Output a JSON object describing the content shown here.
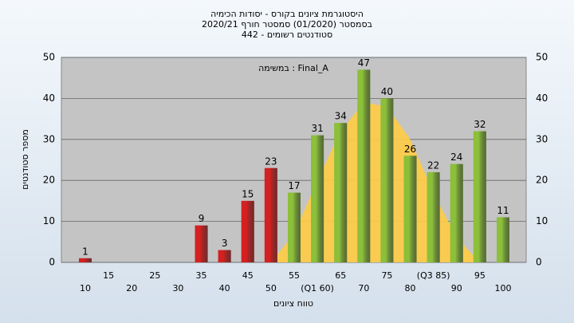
{
  "chart_data": {
    "type": "bar",
    "title": [
      "היסטוגרמת ציונים בקורס - יסודות הכימיה",
      "בסמסטר  (01/2020)  סמסטר חורף  2020/21",
      "סטודנטים רשומים - 442"
    ],
    "annotation": "במשימה : Final_A",
    "x_label": "טווח ציונים",
    "y_label": "מספר סטודנטים",
    "categories": [
      "10",
      "15",
      "20",
      "25",
      "30",
      "35",
      "40",
      "45",
      "50",
      "55",
      "(Q1 60)",
      "65",
      "70",
      "75",
      "80",
      "(Q3 85)",
      "90",
      "95",
      "100"
    ],
    "values": [
      1,
      0,
      0,
      0,
      0,
      9,
      3,
      15,
      23,
      17,
      31,
      34,
      47,
      40,
      26,
      22,
      24,
      32,
      11
    ],
    "colors": [
      "#d42020",
      "#d42020",
      "#d42020",
      "#d42020",
      "#d42020",
      "#d42020",
      "#d42020",
      "#d42020",
      "#d42020",
      "#8cbf3a",
      "#8cbf3a",
      "#8cbf3a",
      "#8cbf3a",
      "#8cbf3a",
      "#8cbf3a",
      "#8cbf3a",
      "#8cbf3a",
      "#8cbf3a",
      "#8cbf3a"
    ],
    "curve": {
      "color": "#ffcc44",
      "values": [
        null,
        null,
        null,
        null,
        null,
        null,
        null,
        null,
        0,
        7,
        20,
        32,
        39,
        38,
        30,
        17,
        6,
        0,
        null
      ]
    },
    "ylim": [
      0,
      50
    ],
    "yticks": [
      0,
      10,
      20,
      30,
      40,
      50
    ],
    "grid": true
  }
}
